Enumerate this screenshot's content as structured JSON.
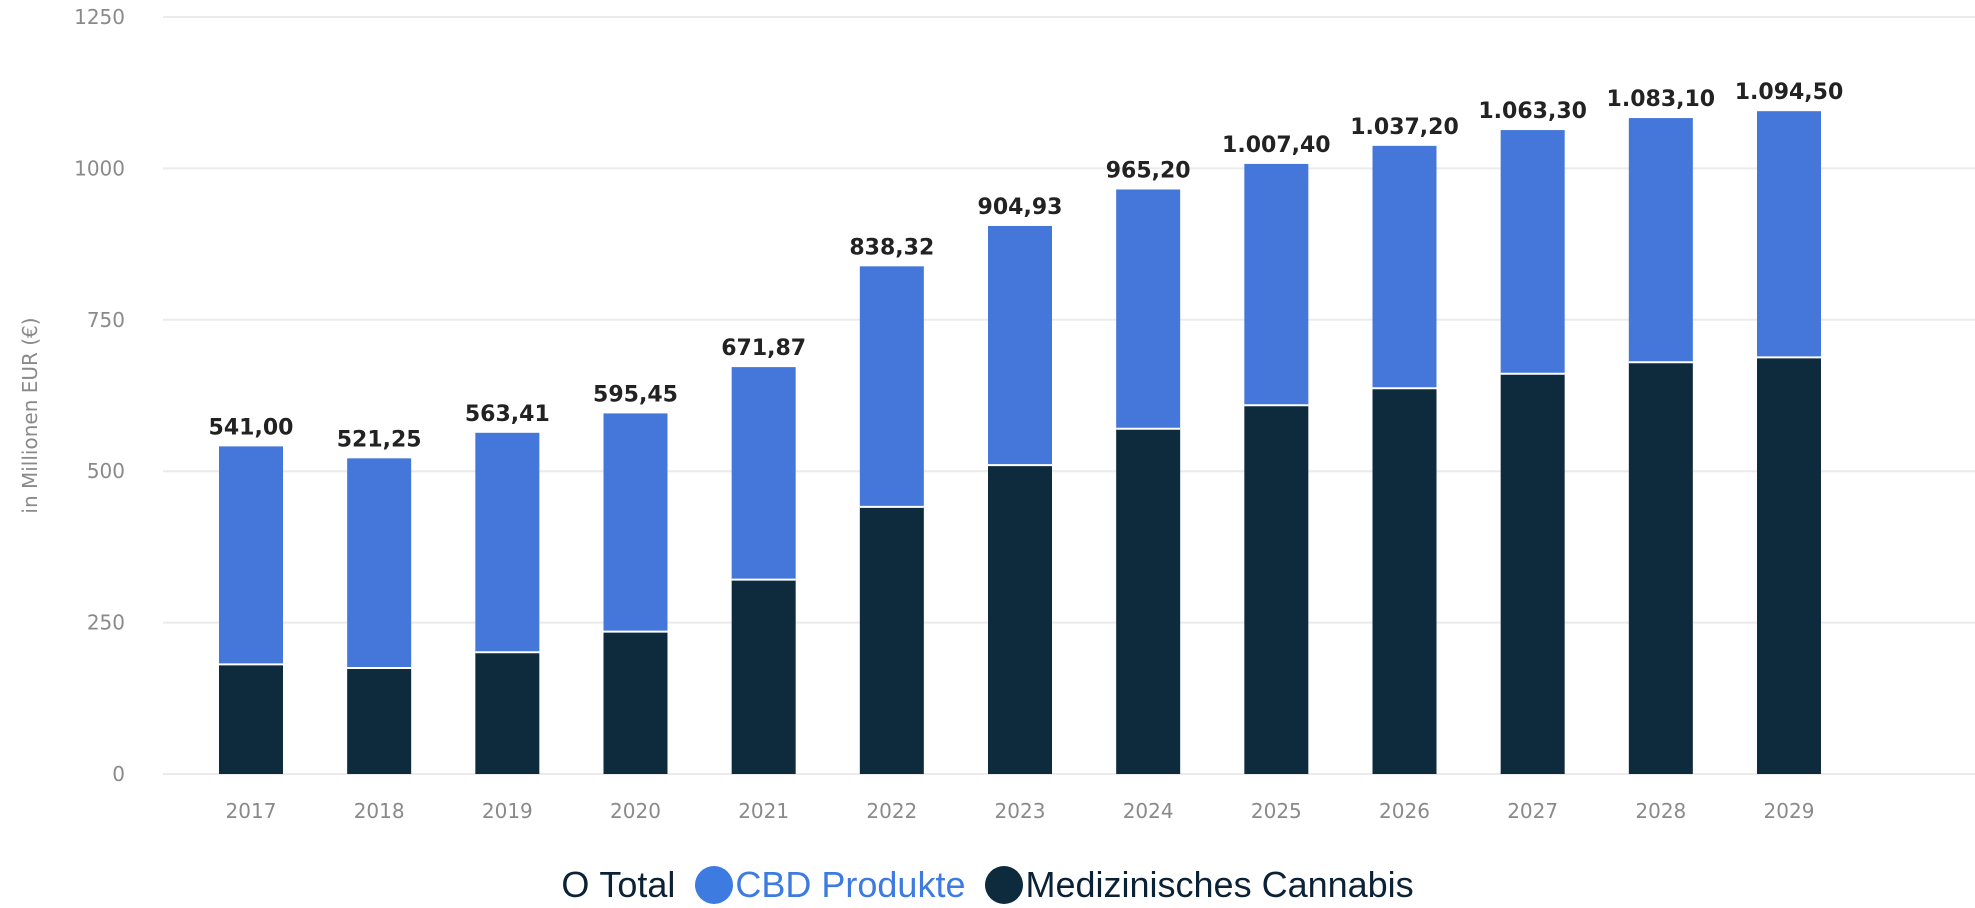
{
  "chart_data": {
    "type": "bar",
    "stacked": true,
    "categories": [
      "2017",
      "2018",
      "2019",
      "2020",
      "2021",
      "2022",
      "2023",
      "2024",
      "2025",
      "2026",
      "2027",
      "2028",
      "2029"
    ],
    "series": [
      {
        "name": "Medizinisches Cannabis",
        "color": "#0e2a3d",
        "values": [
          181,
          175,
          201,
          235,
          321,
          441,
          510,
          570,
          609,
          637,
          661,
          680,
          688
        ]
      },
      {
        "name": "CBD Produkte",
        "color": "#4477d9",
        "values": [
          360.0,
          346.25,
          362.41,
          360.45,
          350.87,
          397.32,
          394.93,
          395.2,
          398.4,
          400.2,
          402.3,
          403.1,
          406.5
        ]
      }
    ],
    "totals": [
      "541,00",
      "521,25",
      "563,41",
      "595,45",
      "671,87",
      "838,32",
      "904,93",
      "965,20",
      "1.007,40",
      "1.037,20",
      "1.063,30",
      "1.083,10",
      "1.094,50"
    ],
    "total_values": [
      541.0,
      521.25,
      563.41,
      595.45,
      671.87,
      838.32,
      904.93,
      965.2,
      1007.4,
      1037.2,
      1063.3,
      1083.1,
      1094.5
    ],
    "ylabel": "in Millionen EUR (€)",
    "xlabel": "",
    "ylim": [
      0,
      1250
    ],
    "yticks": [
      0,
      250,
      500,
      750,
      1000,
      1250
    ],
    "grid": true,
    "legend_position": "bottom-center"
  },
  "legend": {
    "total_marker": "O",
    "total_label": "Total",
    "cbd_label": "CBD Produkte",
    "cbd_color": "#3d7be0",
    "med_label": "Medizinisches Cannabis",
    "med_color": "#0e2a3d"
  }
}
